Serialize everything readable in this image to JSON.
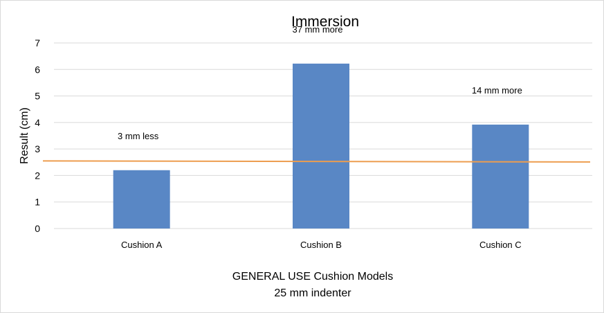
{
  "chart_data": {
    "type": "bar",
    "title": "Immersion",
    "ylabel": "Result (cm)",
    "xlabel_lines": [
      "GENERAL USE Cushion Models",
      "25 mm indenter"
    ],
    "categories": [
      "Cushion A",
      "Cushion B",
      "Cushion C"
    ],
    "values": [
      2.2,
      6.22,
      3.92
    ],
    "annotations": [
      "3 mm less",
      "37 mm more",
      "14  mm more"
    ],
    "ylim": [
      0,
      7
    ],
    "yticks": [
      0,
      1,
      2,
      3,
      4,
      5,
      6,
      7
    ],
    "grid": true,
    "reference_line": {
      "start": 2.55,
      "end": 2.51,
      "color": "#ed9d4f"
    },
    "colors": {
      "bar": "#5987c5",
      "grid": "#d9d9d9"
    }
  }
}
